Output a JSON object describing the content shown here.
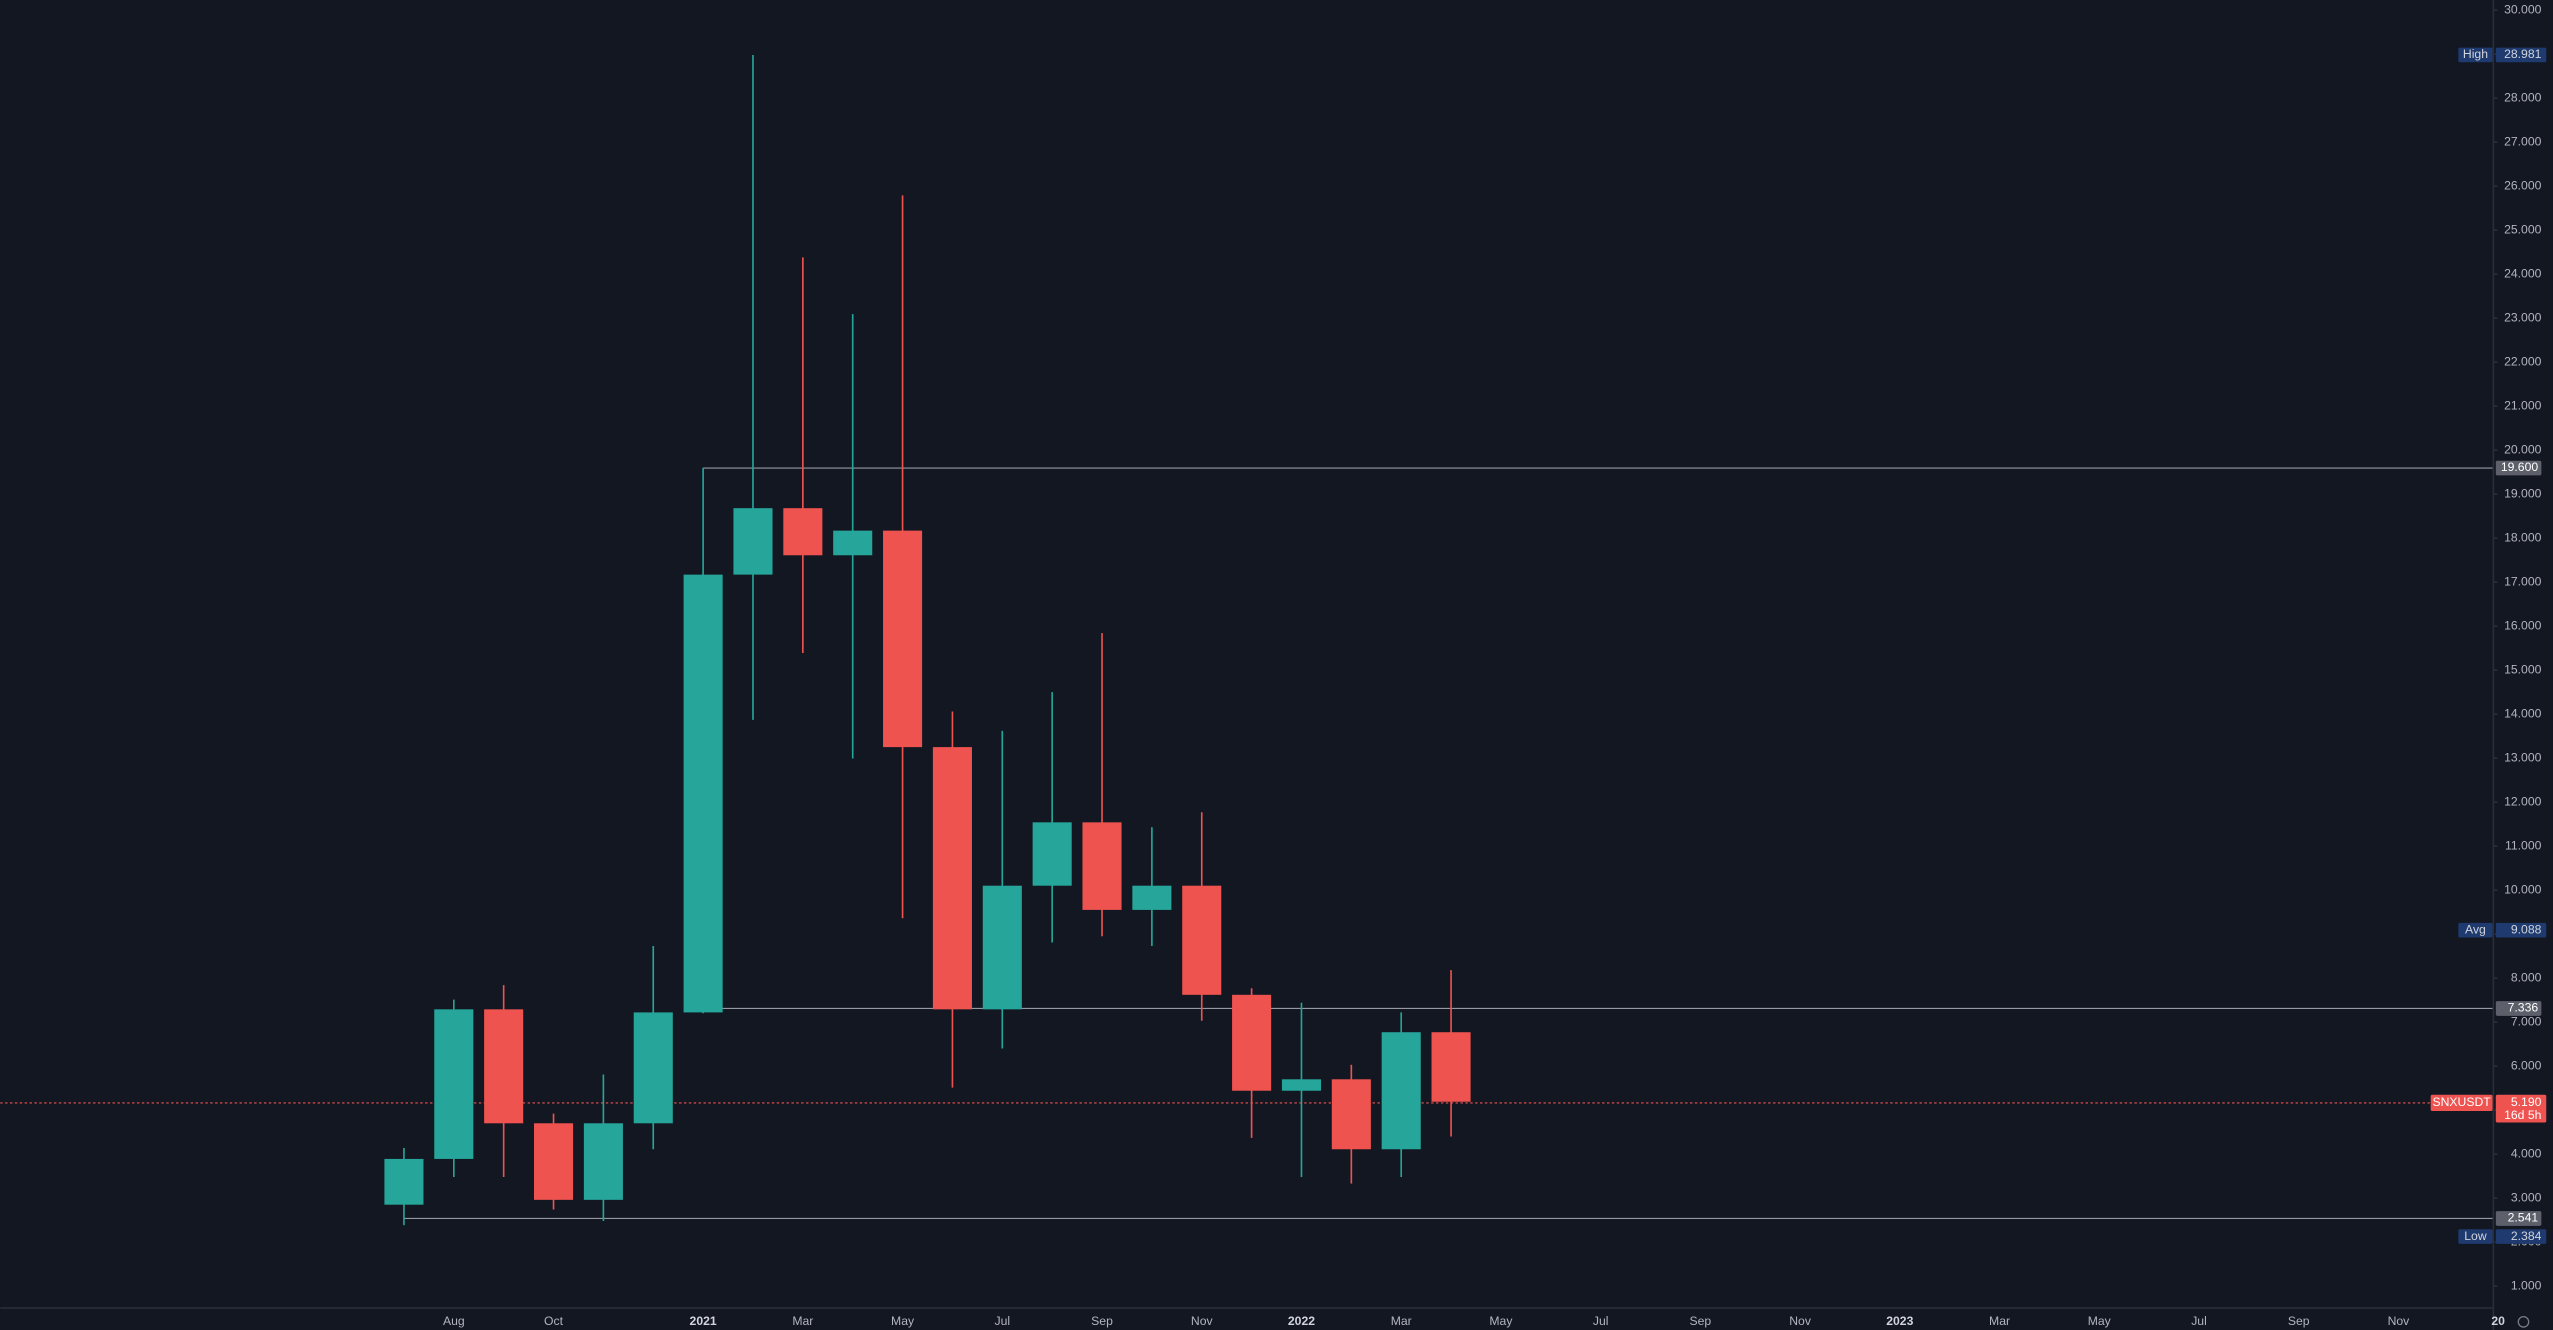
{
  "chart_data": {
    "type": "candlestick",
    "categories": [
      null,
      "Aug",
      null,
      "Oct",
      null,
      null,
      "2021",
      null,
      "Mar",
      null,
      "May",
      null,
      "Jul",
      null,
      "Sep",
      null,
      "Nov",
      null,
      "2022",
      null,
      "Mar",
      null,
      "May",
      null,
      "Jul",
      null,
      "Sep",
      null,
      "Nov",
      null,
      "2023",
      null,
      "Mar",
      null,
      "May",
      null,
      "Jul",
      null,
      "Sep",
      null,
      "Nov",
      null,
      "20"
    ],
    "open": [
      2.85,
      3.89,
      7.29,
      4.7,
      2.96,
      4.7,
      7.22,
      17.17,
      18.68,
      17.61,
      18.17,
      13.25,
      7.29,
      10.1,
      11.54,
      9.55,
      10.1,
      7.62,
      5.44,
      5.7,
      4.11,
      6.77,
      null,
      null,
      null,
      null,
      null,
      null,
      null,
      null,
      null,
      null,
      null,
      null,
      null,
      null,
      null,
      null,
      null,
      null,
      null,
      null,
      null
    ],
    "high": [
      4.14,
      7.51,
      7.84,
      4.92,
      5.81,
      8.73,
      19.6,
      28.981,
      24.38,
      23.09,
      25.79,
      14.06,
      13.62,
      14.5,
      15.84,
      11.43,
      11.77,
      7.77,
      7.44,
      6.03,
      7.22,
      8.18,
      null,
      null,
      null,
      null,
      null,
      null,
      null,
      null,
      null,
      null,
      null,
      null,
      null,
      null,
      null,
      null,
      null,
      null,
      null,
      null,
      null
    ],
    "low": [
      2.384,
      3.48,
      3.48,
      2.74,
      2.48,
      4.11,
      7.2,
      13.87,
      15.39,
      12.99,
      9.36,
      5.51,
      6.4,
      8.81,
      8.95,
      8.73,
      7.03,
      4.37,
      3.48,
      3.33,
      3.48,
      4.4,
      null,
      null,
      null,
      null,
      null,
      null,
      null,
      null,
      null,
      null,
      null,
      null,
      null,
      null,
      null,
      null,
      null,
      null,
      null,
      null,
      null
    ],
    "close": [
      3.89,
      7.29,
      4.7,
      2.96,
      4.7,
      7.22,
      17.17,
      18.68,
      17.61,
      18.17,
      13.25,
      7.29,
      10.1,
      11.54,
      9.55,
      10.1,
      7.62,
      5.44,
      5.7,
      4.11,
      6.77,
      5.19,
      null,
      null,
      null,
      null,
      null,
      null,
      null,
      null,
      null,
      null,
      null,
      null,
      null,
      null,
      null,
      null,
      null,
      null,
      null,
      null,
      null
    ],
    "up_color": "#26a69a",
    "down_color": "#ef5350",
    "ylim": [
      0.52,
      30.23
    ],
    "yticks": [
      {
        "value": 1,
        "label": "1.000"
      },
      {
        "value": 2,
        "label": "2.000"
      },
      {
        "value": 3,
        "label": "3.000"
      },
      {
        "value": 4,
        "label": "4.000"
      },
      {
        "value": 5,
        "label": "5.000"
      },
      {
        "value": 6,
        "label": "6.000"
      },
      {
        "value": 7,
        "label": "7.000"
      },
      {
        "value": 8,
        "label": "8.000"
      },
      {
        "value": 9,
        "label": "9.000"
      },
      {
        "value": 10,
        "label": "10.000"
      },
      {
        "value": 11,
        "label": "11.000"
      },
      {
        "value": 12,
        "label": "12.000"
      },
      {
        "value": 13,
        "label": "13.000"
      },
      {
        "value": 14,
        "label": "14.000"
      },
      {
        "value": 15,
        "label": "15.000"
      },
      {
        "value": 16,
        "label": "16.000"
      },
      {
        "value": 17,
        "label": "17.000"
      },
      {
        "value": 18,
        "label": "18.000"
      },
      {
        "value": 19,
        "label": "19.000"
      },
      {
        "value": 20,
        "label": "20.000"
      },
      {
        "value": 21,
        "label": "21.000"
      },
      {
        "value": 22,
        "label": "22.000"
      },
      {
        "value": 23,
        "label": "23.000"
      },
      {
        "value": 24,
        "label": "24.000"
      },
      {
        "value": 25,
        "label": "25.000"
      },
      {
        "value": 26,
        "label": "26.000"
      },
      {
        "value": 27,
        "label": "27.000"
      },
      {
        "value": 28,
        "label": "28.000"
      },
      {
        "value": 29,
        "label": "29.000"
      },
      {
        "value": 30,
        "label": "30.000"
      }
    ],
    "levels": [
      {
        "value": 19.6,
        "label": "19.600"
      },
      {
        "value": 7.336,
        "label": "7.336"
      },
      {
        "value": 2.541,
        "label": "2.541"
      }
    ],
    "badges": [
      {
        "tag": "High",
        "value": 28.981
      },
      {
        "tag": "Avg",
        "value": 9.088
      },
      {
        "tag": "Low",
        "value": 2.384
      }
    ],
    "last_price": {
      "symbol": "SNXUSDT",
      "value": 5.19,
      "label": "5.190",
      "countdown": "16d 5h"
    }
  }
}
